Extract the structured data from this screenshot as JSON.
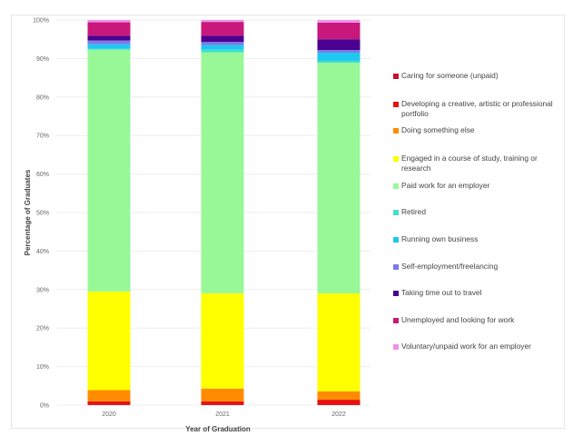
{
  "chart_data": {
    "type": "bar",
    "stacked": true,
    "title": "",
    "xlabel": "Year of Graduation",
    "ylabel": "Percentage of Graduates",
    "ylim": [
      0,
      100
    ],
    "y_ticks": [
      "0%",
      "10%",
      "20%",
      "30%",
      "40%",
      "50%",
      "60%",
      "70%",
      "80%",
      "90%",
      "100%"
    ],
    "grid": true,
    "legend_position": "right",
    "categories": [
      "2020",
      "2021",
      "2022"
    ],
    "series": [
      {
        "name": "Caring for someone (unpaid)",
        "color": "#c8102e",
        "values": [
          0.1,
          0.1,
          0.1
        ]
      },
      {
        "name": "Developing a creative, artistic or professional portfolio",
        "color": "#e8110f",
        "values": [
          0.9,
          0.9,
          1.3
        ]
      },
      {
        "name": "Doing something else",
        "color": "#ff8c00",
        "values": [
          2.9,
          3.3,
          2.2
        ]
      },
      {
        "name": "Engaged in a course of study, training or research",
        "color": "#ffff00",
        "values": [
          25.6,
          24.7,
          25.4
        ]
      },
      {
        "name": "Paid work for an employer",
        "color": "#98f898",
        "values": [
          62.8,
          62.5,
          59.9
        ]
      },
      {
        "name": "Retired",
        "color": "#40e0c8",
        "values": [
          0.2,
          0.7,
          0.5
        ]
      },
      {
        "name": "Running own business",
        "color": "#1ec8f0",
        "values": [
          1.2,
          1.2,
          2.1
        ]
      },
      {
        "name": "Self-employment/freelancing",
        "color": "#7b7be8",
        "values": [
          1.0,
          0.8,
          0.7
        ]
      },
      {
        "name": "Taking time out to travel",
        "color": "#4b0090",
        "values": [
          1.2,
          1.6,
          2.8
        ]
      },
      {
        "name": "Unemployed and looking for work",
        "color": "#c8187c",
        "values": [
          3.5,
          3.6,
          4.3
        ]
      },
      {
        "name": "Voluntary/unpaid work for an employer",
        "color": "#f090e8",
        "values": [
          0.6,
          0.5,
          0.7
        ]
      }
    ]
  }
}
